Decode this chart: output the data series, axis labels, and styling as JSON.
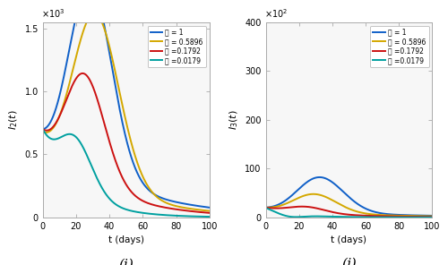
{
  "legend_labels": [
    "N = 1",
    "N = 0.5896",
    "N =0.1792",
    "N =0.0179"
  ],
  "colors_i": [
    "#1060c8",
    "#d4a800",
    "#cc1111",
    "#00a0a0"
  ],
  "colors_j": [
    "#1060c8",
    "#d4a800",
    "#cc1111",
    "#00a0a0"
  ],
  "t_max": 100,
  "xlabel": "t (days)",
  "ylabel_i": "I_2(t)",
  "ylabel_j": "I_3(t)",
  "label_i": "(i)",
  "label_j": "(j)",
  "linewidth": 1.4,
  "i2_params": [
    {
      "C0": 700,
      "A": 58.0,
      "mu": 22,
      "sig": 14,
      "decay": 0.022
    },
    {
      "C0": 680,
      "A": 46.0,
      "mu": 25,
      "sig": 15,
      "decay": 0.026
    },
    {
      "C0": 700,
      "A": 36.0,
      "mu": 19,
      "sig": 13,
      "decay": 0.03
    },
    {
      "C0": 700,
      "A": 22.0,
      "mu": 14,
      "sig": 11,
      "decay": 0.05
    }
  ],
  "i3_params": [
    {
      "C0": 2000,
      "A": 240,
      "mu": 26,
      "sig": 15,
      "decay": 0.018
    },
    {
      "C0": 2000,
      "A": 140,
      "mu": 23,
      "sig": 14,
      "decay": 0.022
    },
    {
      "C0": 2000,
      "A": 55,
      "mu": 19,
      "sig": 12,
      "decay": 0.03
    },
    {
      "C0": 1950,
      "A": -50,
      "mu": 10,
      "sig": 8,
      "decay": 0.065
    }
  ],
  "ylim_i": [
    0,
    1550
  ],
  "ylim_j": [
    0,
    4600
  ],
  "yticks_i": [
    0,
    500,
    1000,
    1500
  ],
  "yticks_j": [
    0,
    100,
    200,
    300,
    400
  ],
  "xticks": [
    0,
    20,
    40,
    60,
    80,
    100
  ]
}
